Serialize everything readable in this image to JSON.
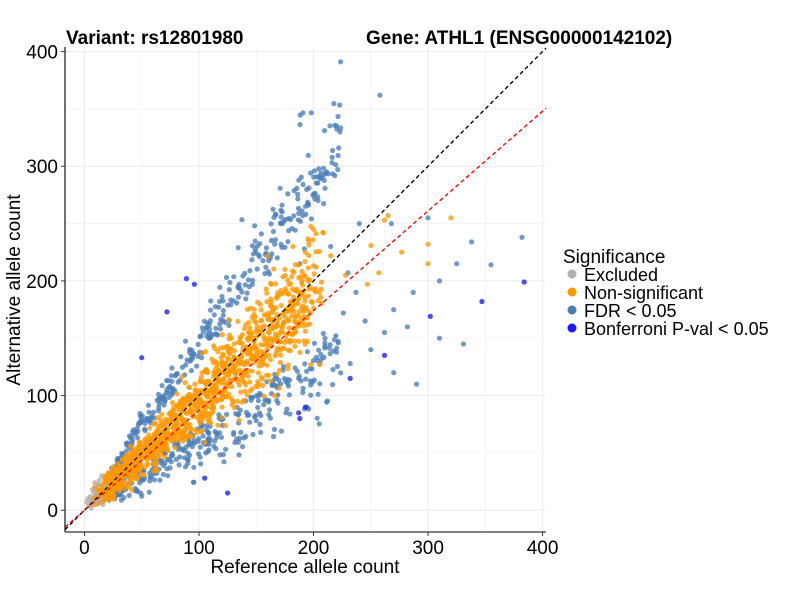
{
  "chart_data": {
    "type": "scatter",
    "title_left": "Variant: rs12801980",
    "title_right": "Gene: ATHL1 (ENSG00000142102)",
    "xlabel": "Reference allele count",
    "ylabel": "Alternative allele count",
    "xlim": [
      -17,
      403
    ],
    "ylim": [
      -19,
      404
    ],
    "x_ticks": [
      0,
      100,
      200,
      300,
      400
    ],
    "y_ticks": [
      0,
      100,
      200,
      300,
      400
    ],
    "grid": true,
    "legend": {
      "title": "Significance",
      "position": "right",
      "entries": [
        {
          "label": "Excluded",
          "color": "#b0b0b0"
        },
        {
          "label": "Non-significant",
          "color": "#ff9900"
        },
        {
          "label": "FDR < 0.05",
          "color": "#4a7db8"
        },
        {
          "label": "Bonferroni P-val < 0.05",
          "color": "#1a1aff"
        }
      ]
    },
    "reference_lines": [
      {
        "name": "identity",
        "slope": 1.0,
        "intercept": 0,
        "color": "#000000",
        "style": "dashed"
      },
      {
        "name": "expected-ratio",
        "slope": 0.87,
        "intercept": 0,
        "color": "#ff0000",
        "style": "dashed"
      }
    ],
    "series": [
      {
        "name": "Excluded",
        "color": "#b0b0b0",
        "points": [
          [
            3,
            10
          ],
          [
            5,
            12
          ],
          [
            6,
            8
          ],
          [
            8,
            16
          ],
          [
            9,
            6
          ],
          [
            10,
            14
          ],
          [
            12,
            22
          ],
          [
            14,
            10
          ],
          [
            15,
            30
          ],
          [
            4,
            4
          ],
          [
            7,
            18
          ],
          [
            11,
            9
          ],
          [
            16,
            5
          ],
          [
            13,
            26
          ],
          [
            18,
            20
          ],
          [
            6,
            2
          ],
          [
            2,
            7
          ],
          [
            9,
            24
          ]
        ]
      },
      {
        "name": "Non-significant",
        "color": "#ff9900",
        "generator": {
          "count": 1300,
          "seed": 7,
          "x_range": [
            10,
            200
          ],
          "ratio_sd": 0.13,
          "ratio_mean": 0.95
        },
        "points": [
          [
            300,
            232
          ],
          [
            320,
            255
          ],
          [
            265,
            257
          ],
          [
            262,
            253
          ],
          [
            277,
            225
          ],
          [
            300,
            215
          ],
          [
            257,
            207
          ],
          [
            247,
            197
          ],
          [
            250,
            231
          ],
          [
            200,
            245
          ],
          [
            215,
            222
          ],
          [
            228,
            205
          ],
          [
            182,
            230
          ],
          [
            163,
            197
          ],
          [
            175,
            210
          ],
          [
            190,
            200
          ]
        ]
      },
      {
        "name": "FDR < 0.05",
        "color": "#4a7db8",
        "generator": {
          "count": 650,
          "seed": 23,
          "x_range": [
            20,
            260
          ]
        },
        "points": [
          [
            258,
            362
          ],
          [
            222,
            316
          ],
          [
            205,
            291
          ],
          [
            190,
            261
          ],
          [
            158,
            223
          ],
          [
            135,
            197
          ],
          [
            300,
            255
          ],
          [
            192,
            228
          ],
          [
            188,
            215
          ],
          [
            338,
            234
          ],
          [
            382,
            238
          ],
          [
            268,
            250
          ],
          [
            325,
            215
          ],
          [
            355,
            214
          ],
          [
            310,
            200
          ],
          [
            287,
            190
          ],
          [
            282,
            160
          ],
          [
            240,
            250
          ],
          [
            215,
            230
          ],
          [
            262,
            155
          ],
          [
            250,
            140
          ],
          [
            232,
            128
          ],
          [
            270,
            120
          ],
          [
            290,
            110
          ],
          [
            310,
            150
          ],
          [
            331,
            145
          ],
          [
            245,
            165
          ],
          [
            226,
            172
          ],
          [
            210,
            150
          ],
          [
            237,
            190
          ],
          [
            230,
            207
          ],
          [
            270,
            175
          ]
        ]
      },
      {
        "name": "Bonferroni P-val < 0.05",
        "color": "#1a1aff",
        "points": [
          [
            89,
            202
          ],
          [
            96,
            197
          ],
          [
            50,
            133
          ],
          [
            72,
            173
          ],
          [
            384,
            199
          ],
          [
            347,
            182
          ],
          [
            302,
            169
          ],
          [
            262,
            135
          ],
          [
            232,
            115
          ],
          [
            193,
            90
          ],
          [
            188,
            80
          ],
          [
            187,
            85
          ],
          [
            125,
            15
          ],
          [
            105,
            28
          ]
        ]
      }
    ]
  }
}
